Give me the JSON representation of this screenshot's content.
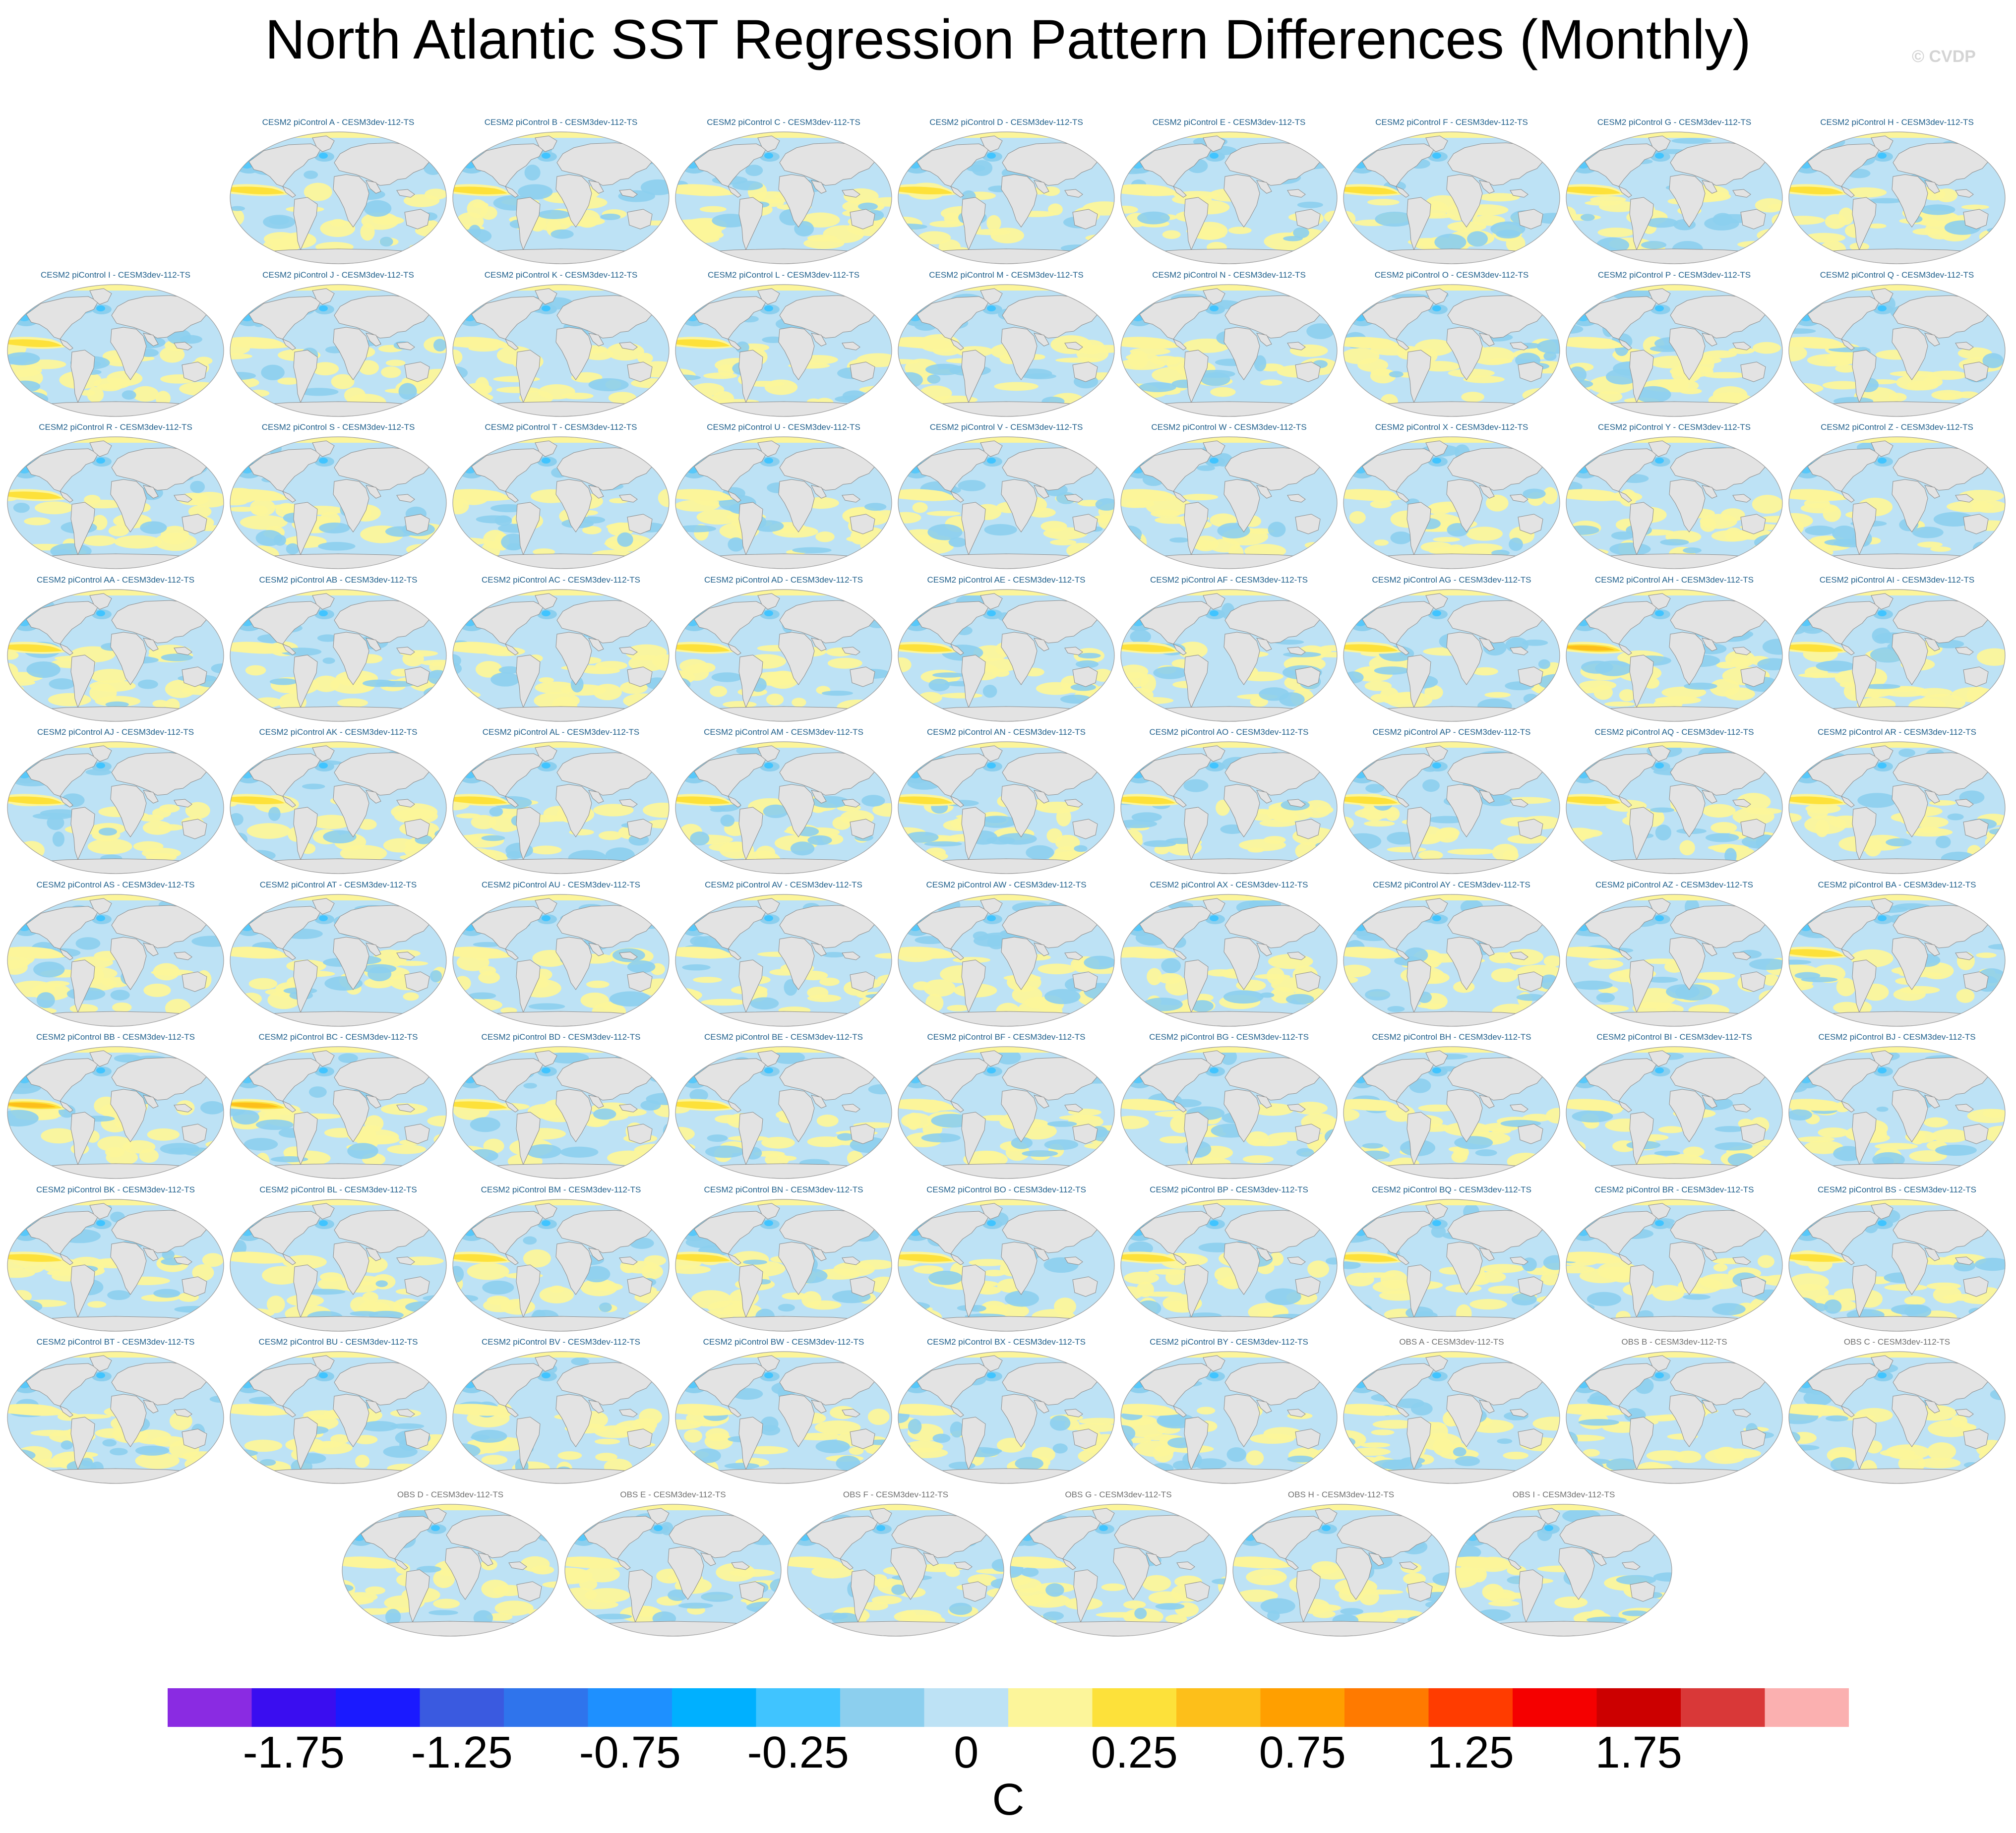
{
  "title": "North Atlantic SST Regression Pattern Differences (Monthly)",
  "copyright": "© CVDP",
  "panels": [
    {
      "label": "CESM2 piControl A - CESM3dev-112-TS",
      "group": "cesm",
      "eq": 0.3
    },
    {
      "label": "CESM2 piControl B - CESM3dev-112-TS",
      "group": "cesm",
      "eq": 0.4
    },
    {
      "label": "CESM2 piControl C - CESM3dev-112-TS",
      "group": "cesm",
      "eq": 0.2
    },
    {
      "label": "CESM2 piControl D - CESM3dev-112-TS",
      "group": "cesm",
      "eq": 0.3
    },
    {
      "label": "CESM2 piControl E - CESM3dev-112-TS",
      "group": "cesm",
      "eq": 0.2
    },
    {
      "label": "CESM2 piControl F - CESM3dev-112-TS",
      "group": "cesm",
      "eq": 0.4
    },
    {
      "label": "CESM2 piControl G - CESM3dev-112-TS",
      "group": "cesm",
      "eq": 0.4
    },
    {
      "label": "CESM2 piControl H - CESM3dev-112-TS",
      "group": "cesm",
      "eq": 0.4
    },
    {
      "label": "CESM2 piControl I - CESM3dev-112-TS",
      "group": "cesm",
      "eq": 0.3
    },
    {
      "label": "CESM2 piControl J - CESM3dev-112-TS",
      "group": "cesm",
      "eq": 0.2
    },
    {
      "label": "CESM2 piControl K - CESM3dev-112-TS",
      "group": "cesm",
      "eq": 0.2
    },
    {
      "label": "CESM2 piControl L - CESM3dev-112-TS",
      "group": "cesm",
      "eq": 0.3
    },
    {
      "label": "CESM2 piControl M - CESM3dev-112-TS",
      "group": "cesm",
      "eq": 0.2
    },
    {
      "label": "CESM2 piControl N - CESM3dev-112-TS",
      "group": "cesm",
      "eq": 0.2
    },
    {
      "label": "CESM2 piControl O - CESM3dev-112-TS",
      "group": "cesm",
      "eq": 0.2
    },
    {
      "label": "CESM2 piControl P - CESM3dev-112-TS",
      "group": "cesm",
      "eq": 0.2
    },
    {
      "label": "CESM2 piControl Q - CESM3dev-112-TS",
      "group": "cesm",
      "eq": 0.2
    },
    {
      "label": "CESM2 piControl R - CESM3dev-112-TS",
      "group": "cesm",
      "eq": 0.3
    },
    {
      "label": "CESM2 piControl S - CESM3dev-112-TS",
      "group": "cesm",
      "eq": 0.2
    },
    {
      "label": "CESM2 piControl T - CESM3dev-112-TS",
      "group": "cesm",
      "eq": 0.2
    },
    {
      "label": "CESM2 piControl U - CESM3dev-112-TS",
      "group": "cesm",
      "eq": 0.2
    },
    {
      "label": "CESM2 piControl V - CESM3dev-112-TS",
      "group": "cesm",
      "eq": 0.1
    },
    {
      "label": "CESM2 piControl W - CESM3dev-112-TS",
      "group": "cesm",
      "eq": 0.1
    },
    {
      "label": "CESM2 piControl X - CESM3dev-112-TS",
      "group": "cesm",
      "eq": 0.1
    },
    {
      "label": "CESM2 piControl Y - CESM3dev-112-TS",
      "group": "cesm",
      "eq": 0.1
    },
    {
      "label": "CESM2 piControl Z - CESM3dev-112-TS",
      "group": "cesm",
      "eq": 0.2
    },
    {
      "label": "CESM2 piControl AA - CESM3dev-112-TS",
      "group": "cesm",
      "eq": 0.4
    },
    {
      "label": "CESM2 piControl AB - CESM3dev-112-TS",
      "group": "cesm",
      "eq": 0.2
    },
    {
      "label": "CESM2 piControl AC - CESM3dev-112-TS",
      "group": "cesm",
      "eq": 0.2
    },
    {
      "label": "CESM2 piControl AD - CESM3dev-112-TS",
      "group": "cesm",
      "eq": 0.3
    },
    {
      "label": "CESM2 piControl AE - CESM3dev-112-TS",
      "group": "cesm",
      "eq": 0.5
    },
    {
      "label": "CESM2 piControl AF - CESM3dev-112-TS",
      "group": "cesm",
      "eq": 0.5
    },
    {
      "label": "CESM2 piControl AG - CESM3dev-112-TS",
      "group": "cesm",
      "eq": 0.5
    },
    {
      "label": "CESM2 piControl AH - CESM3dev-112-TS",
      "group": "cesm",
      "eq": 0.7
    },
    {
      "label": "CESM2 piControl AI - CESM3dev-112-TS",
      "group": "cesm",
      "eq": 0.5
    },
    {
      "label": "CESM2 piControl AJ - CESM3dev-112-TS",
      "group": "cesm",
      "eq": 0.5
    },
    {
      "label": "CESM2 piControl AK - CESM3dev-112-TS",
      "group": "cesm",
      "eq": 0.5
    },
    {
      "label": "CESM2 piControl AL - CESM3dev-112-TS",
      "group": "cesm",
      "eq": 0.4
    },
    {
      "label": "CESM2 piControl AM - CESM3dev-112-TS",
      "group": "cesm",
      "eq": 0.4
    },
    {
      "label": "CESM2 piControl AN - CESM3dev-112-TS",
      "group": "cesm",
      "eq": 0.4
    },
    {
      "label": "CESM2 piControl AO - CESM3dev-112-TS",
      "group": "cesm",
      "eq": 0.3
    },
    {
      "label": "CESM2 piControl AP - CESM3dev-112-TS",
      "group": "cesm",
      "eq": 0.5
    },
    {
      "label": "CESM2 piControl AQ - CESM3dev-112-TS",
      "group": "cesm",
      "eq": 0.3
    },
    {
      "label": "CESM2 piControl AR - CESM3dev-112-TS",
      "group": "cesm",
      "eq": 0.3
    },
    {
      "label": "CESM2 piControl AS - CESM3dev-112-TS",
      "group": "cesm",
      "eq": 0.1
    },
    {
      "label": "CESM2 piControl AT - CESM3dev-112-TS",
      "group": "cesm",
      "eq": 0.2
    },
    {
      "label": "CESM2 piControl AU - CESM3dev-112-TS",
      "group": "cesm",
      "eq": 0.1
    },
    {
      "label": "CESM2 piControl AV - CESM3dev-112-TS",
      "group": "cesm",
      "eq": 0.2
    },
    {
      "label": "CESM2 piControl AW - CESM3dev-112-TS",
      "group": "cesm",
      "eq": 0.2
    },
    {
      "label": "CESM2 piControl AX - CESM3dev-112-TS",
      "group": "cesm",
      "eq": 0.1
    },
    {
      "label": "CESM2 piControl AY - CESM3dev-112-TS",
      "group": "cesm",
      "eq": 0.2
    },
    {
      "label": "CESM2 piControl AZ - CESM3dev-112-TS",
      "group": "cesm",
      "eq": 0.2
    },
    {
      "label": "CESM2 piControl BA - CESM3dev-112-TS",
      "group": "cesm",
      "eq": 0.5
    },
    {
      "label": "CESM2 piControl BB - CESM3dev-112-TS",
      "group": "cesm",
      "eq": 0.6
    },
    {
      "label": "CESM2 piControl BC - CESM3dev-112-TS",
      "group": "cesm",
      "eq": 0.7
    },
    {
      "label": "CESM2 piControl BD - CESM3dev-112-TS",
      "group": "cesm",
      "eq": 0.5
    },
    {
      "label": "CESM2 piControl BE - CESM3dev-112-TS",
      "group": "cesm",
      "eq": 0.3
    },
    {
      "label": "CESM2 piControl BF - CESM3dev-112-TS",
      "group": "cesm",
      "eq": 0.2
    },
    {
      "label": "CESM2 piControl BG - CESM3dev-112-TS",
      "group": "cesm",
      "eq": 0.2
    },
    {
      "label": "CESM2 piControl BH - CESM3dev-112-TS",
      "group": "cesm",
      "eq": 0.2
    },
    {
      "label": "CESM2 piControl BI - CESM3dev-112-TS",
      "group": "cesm",
      "eq": 0.1
    },
    {
      "label": "CESM2 piControl BJ - CESM3dev-112-TS",
      "group": "cesm",
      "eq": 0.2
    },
    {
      "label": "CESM2 piControl BK - CESM3dev-112-TS",
      "group": "cesm",
      "eq": 0.3
    },
    {
      "label": "CESM2 piControl BL - CESM3dev-112-TS",
      "group": "cesm",
      "eq": 0.2
    },
    {
      "label": "CESM2 piControl BM - CESM3dev-112-TS",
      "group": "cesm",
      "eq": 0.3
    },
    {
      "label": "CESM2 piControl BN - CESM3dev-112-TS",
      "group": "cesm",
      "eq": 0.3
    },
    {
      "label": "CESM2 piControl BO - CESM3dev-112-TS",
      "group": "cesm",
      "eq": 0.3
    },
    {
      "label": "CESM2 piControl BP - CESM3dev-112-TS",
      "group": "cesm",
      "eq": 0.3
    },
    {
      "label": "CESM2 piControl BQ - CESM3dev-112-TS",
      "group": "cesm",
      "eq": 0.4
    },
    {
      "label": "CESM2 piControl BR - CESM3dev-112-TS",
      "group": "cesm",
      "eq": 0.2
    },
    {
      "label": "CESM2 piControl BS - CESM3dev-112-TS",
      "group": "cesm",
      "eq": 0.4
    },
    {
      "label": "CESM2 piControl BT - CESM3dev-112-TS",
      "group": "cesm",
      "eq": 0.2
    },
    {
      "label": "CESM2 piControl BU - CESM3dev-112-TS",
      "group": "cesm",
      "eq": 0.2
    },
    {
      "label": "CESM2 piControl BV - CESM3dev-112-TS",
      "group": "cesm",
      "eq": 0.1
    },
    {
      "label": "CESM2 piControl BW - CESM3dev-112-TS",
      "group": "cesm",
      "eq": 0.2
    },
    {
      "label": "CESM2 piControl BX - CESM3dev-112-TS",
      "group": "cesm",
      "eq": 0.2
    },
    {
      "label": "CESM2 piControl BY - CESM3dev-112-TS",
      "group": "cesm",
      "eq": 0.2
    },
    {
      "label": "OBS A - CESM3dev-112-TS",
      "group": "obs",
      "eq": 0.2
    },
    {
      "label": "OBS B - CESM3dev-112-TS",
      "group": "obs",
      "eq": 0.2
    },
    {
      "label": "OBS C - CESM3dev-112-TS",
      "group": "obs",
      "eq": 0.2
    },
    {
      "label": "OBS D - CESM3dev-112-TS",
      "group": "obs",
      "eq": 0.2
    },
    {
      "label": "OBS E - CESM3dev-112-TS",
      "group": "obs",
      "eq": 0.2
    },
    {
      "label": "OBS F - CESM3dev-112-TS",
      "group": "obs",
      "eq": 0.1
    },
    {
      "label": "OBS G - CESM3dev-112-TS",
      "group": "obs",
      "eq": 0.2
    },
    {
      "label": "OBS H - CESM3dev-112-TS",
      "group": "obs",
      "eq": 0.2
    },
    {
      "label": "OBS I - CESM3dev-112-TS",
      "group": "obs",
      "eq": 0.2
    }
  ],
  "colorbar": {
    "unit": "C",
    "colors": [
      "#8a2be2",
      "#3a0df0",
      "#1a1aff",
      "#3a5ae0",
      "#2f74ec",
      "#1e90ff",
      "#00b0ff",
      "#40c4ff",
      "#8ccfee",
      "#bde2f5",
      "#fcf59a",
      "#fde13a",
      "#fdbf1a",
      "#ff9f00",
      "#ff7a00",
      "#ff3c00",
      "#f50000",
      "#cc0000",
      "#d93838",
      "#fbb0b0"
    ],
    "tick_labels": [
      "-1.75",
      "-1.25",
      "-0.75",
      "-0.25",
      "0",
      "0.25",
      "0.75",
      "1.25",
      "1.75"
    ],
    "tick_boundaries": [
      2,
      4,
      6,
      8,
      10,
      12,
      14,
      16,
      18
    ]
  },
  "colors": {
    "land": "#e3e3e3",
    "ocean_base": "#bde2f5",
    "ocean_blue": "#8ccfee",
    "ocean_blue_strong": "#40c4ff",
    "ocean_yellow": "#fcf59a",
    "ocean_yellow_strong": "#fde13a",
    "ocean_orange": "#fdbf1a"
  }
}
